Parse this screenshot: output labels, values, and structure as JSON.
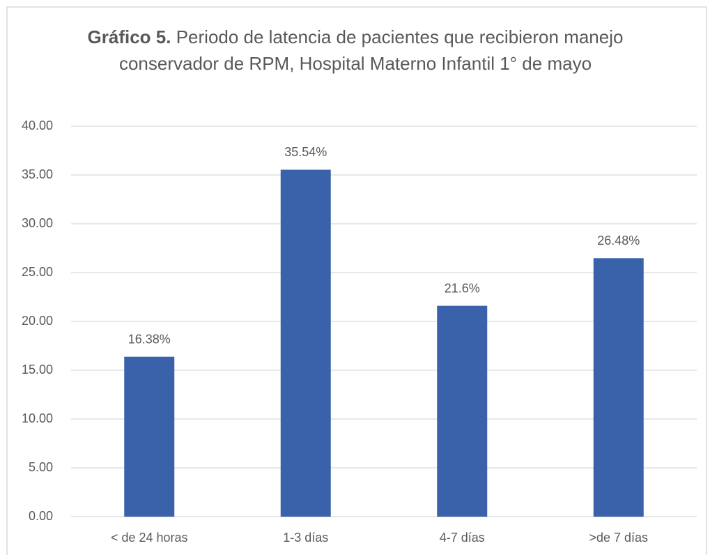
{
  "chart_data": {
    "type": "bar",
    "title_label": "Gráfico 5.",
    "title": "Periodo de latencia de pacientes que recibieron manejo conservador de RPM, Hospital Materno Infantil 1° de mayo",
    "categories": [
      "< de 24 horas",
      "1-3 días",
      "4-7 días",
      ">de 7 días"
    ],
    "values": [
      16.38,
      35.54,
      21.6,
      26.48
    ],
    "value_labels": [
      "16.38%",
      "35.54%",
      "21.6%",
      "26.48%"
    ],
    "color": "#3a62ab",
    "ylim": [
      0,
      40
    ],
    "yticks": [
      {
        "value": 0,
        "label": "0.00"
      },
      {
        "value": 5,
        "label": "5.00"
      },
      {
        "value": 10,
        "label": "10.00"
      },
      {
        "value": 15,
        "label": "15.00"
      },
      {
        "value": 20,
        "label": "20.00"
      },
      {
        "value": 25,
        "label": "25.00"
      },
      {
        "value": 30,
        "label": "30.00"
      },
      {
        "value": 35,
        "label": "35.00"
      },
      {
        "value": 40,
        "label": "40.00"
      }
    ],
    "grid": true
  }
}
